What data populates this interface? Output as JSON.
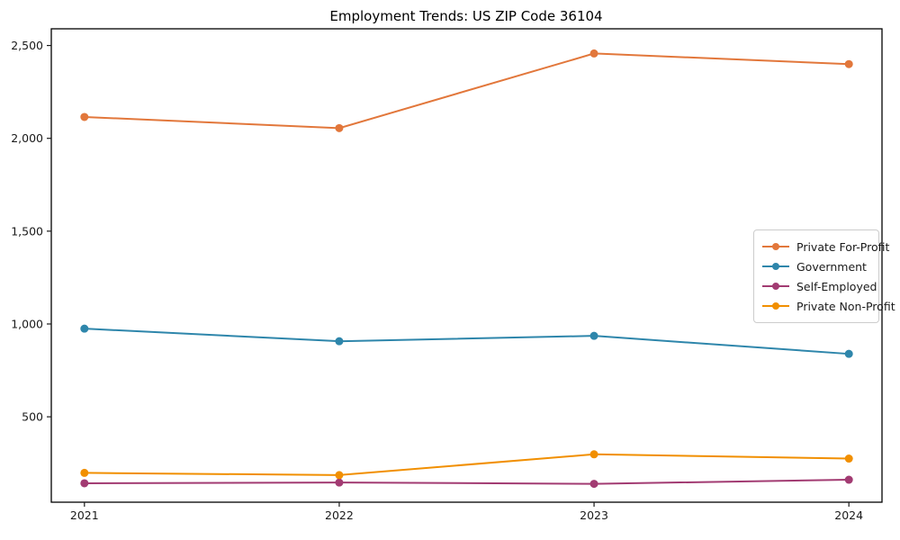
{
  "page": {
    "title": "Employment Trends: US ZIP Code 36104"
  },
  "chart_data": {
    "type": "line",
    "title": "Employment Trends: US ZIP Code 36104",
    "x": [
      2021,
      2022,
      2023,
      2024
    ],
    "xtick_labels": [
      "2021",
      "2022",
      "2023",
      "2024"
    ],
    "yticks": [
      500,
      1000,
      1500,
      2000,
      2500
    ],
    "ytick_labels": [
      "500",
      "1,000",
      "1,500",
      "2,000",
      "2,500"
    ],
    "xlim": [
      2020.87,
      2024.13
    ],
    "ylim": [
      40,
      2590
    ],
    "grid": false,
    "legend_position": "center right",
    "series": [
      {
        "name": "Private For-Profit",
        "color": "#E2773B",
        "values": [
          2115,
          2055,
          2457,
          2400
        ]
      },
      {
        "name": "Government",
        "color": "#2E86AB",
        "values": [
          975,
          907,
          936,
          839
        ]
      },
      {
        "name": "Self-Employed",
        "color": "#A23B72",
        "values": [
          142,
          146,
          139,
          161
        ]
      },
      {
        "name": "Private Non-Profit",
        "color": "#F18F01",
        "values": [
          198,
          186,
          298,
          275
        ]
      }
    ],
    "style": {
      "line_width": 2,
      "marker_radius": 4.5,
      "frame_color": "#000000",
      "tick_color": "#1a1a1a"
    }
  }
}
